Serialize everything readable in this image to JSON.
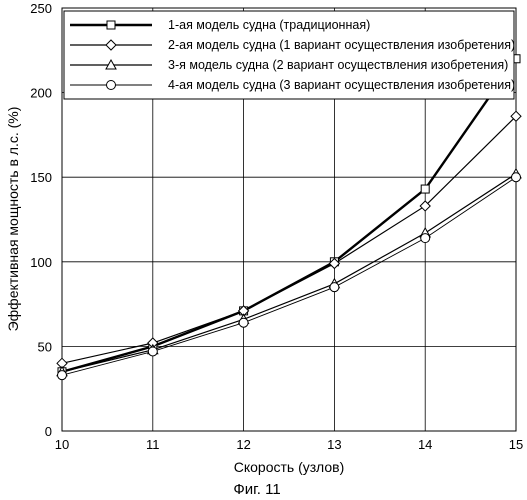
{
  "chart_data": {
    "type": "line",
    "title": "",
    "xlabel": "Скорость (узлов)",
    "ylabel": "Эффективная мощность в л.с. (%)",
    "caption": "Фиг. 11",
    "x": [
      10,
      11,
      12,
      13,
      14,
      15
    ],
    "xlim": [
      10,
      15
    ],
    "ylim": [
      0,
      250
    ],
    "x_ticks": [
      "10",
      "11",
      "12",
      "13",
      "14",
      "15"
    ],
    "y_ticks": [
      "0",
      "50",
      "100",
      "150",
      "200",
      "250"
    ],
    "grid": true,
    "legend_position": "top-right",
    "series": [
      {
        "name": "1-ая модель судна (традиционная)",
        "marker": "square",
        "color": "#000000",
        "values": [
          35,
          50,
          71,
          100,
          143,
          220
        ]
      },
      {
        "name": "2-ая модель судна (1 вариант осуществления изобретения)",
        "marker": "diamond",
        "color": "#000000",
        "values": [
          40,
          52,
          71,
          99,
          133,
          186
        ]
      },
      {
        "name": "3-я модель судна (2 вариант осуществления изобретения)",
        "marker": "triangle",
        "color": "#000000",
        "values": [
          35,
          48,
          66,
          87,
          117,
          152
        ]
      },
      {
        "name": "4-ая модель судна (3 вариант осуществления изобретения)",
        "marker": "circle",
        "color": "#000000",
        "values": [
          33,
          47,
          64,
          85,
          114,
          150
        ]
      }
    ]
  }
}
